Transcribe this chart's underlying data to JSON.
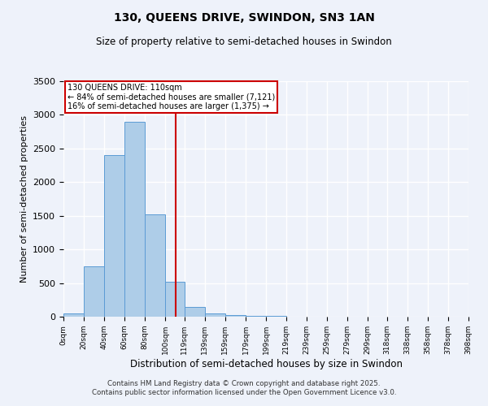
{
  "title1": "130, QUEENS DRIVE, SWINDON, SN3 1AN",
  "title2": "Size of property relative to semi-detached houses in Swindon",
  "xlabel": "Distribution of semi-detached houses by size in Swindon",
  "ylabel": "Number of semi-detached properties",
  "bin_edges": [
    0,
    20,
    40,
    60,
    80,
    100,
    119,
    139,
    159,
    179,
    199,
    219,
    239,
    259,
    279,
    299,
    318,
    338,
    358,
    378,
    398
  ],
  "bar_heights": [
    50,
    750,
    2400,
    2900,
    1520,
    520,
    150,
    50,
    25,
    10,
    8,
    5,
    4,
    3,
    3,
    2,
    2,
    1,
    1,
    1
  ],
  "bar_color": "#aecde8",
  "bar_edge_color": "#5b9bd5",
  "property_size": 110,
  "property_label": "130 QUEENS DRIVE: 110sqm",
  "pct_smaller": 84,
  "count_smaller": 7121,
  "pct_larger": 16,
  "count_larger": 1375,
  "vline_color": "#cc0000",
  "box_edge_color": "#cc0000",
  "ylim": [
    0,
    3500
  ],
  "yticks": [
    0,
    500,
    1000,
    1500,
    2000,
    2500,
    3000,
    3500
  ],
  "background_color": "#eef2fa",
  "grid_color": "#ffffff",
  "footer1": "Contains HM Land Registry data © Crown copyright and database right 2025.",
  "footer2": "Contains public sector information licensed under the Open Government Licence v3.0."
}
